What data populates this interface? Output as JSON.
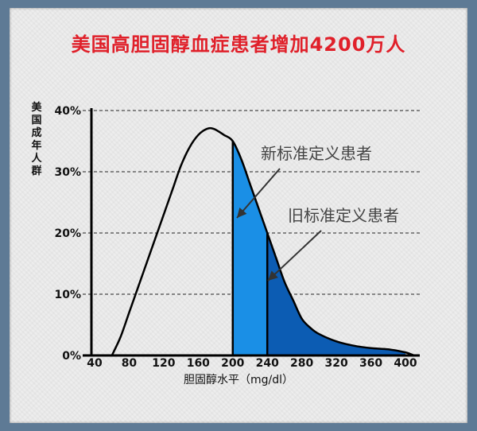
{
  "chart_data": {
    "type": "area",
    "title": "美国高胆固醇血症患者增加4200万人",
    "ylabel": "美国成年人群",
    "xlabel": "胆固醇水平（mg/dl）",
    "x_ticks": [
      40,
      80,
      120,
      160,
      200,
      240,
      280,
      320,
      360,
      400
    ],
    "y_ticks": [
      "0%",
      "10%",
      "20%",
      "30%",
      "40%"
    ],
    "xlim": [
      40,
      420
    ],
    "ylim": [
      0,
      40
    ],
    "grid": "horizontal dashed",
    "series": [
      {
        "x": [
          60,
          70,
          80,
          90,
          100,
          110,
          120,
          130,
          140,
          150,
          160,
          170,
          178,
          190,
          200,
          210,
          220,
          230,
          240,
          250,
          260,
          270,
          280,
          290,
          300,
          320,
          340,
          360,
          380,
          400,
          410
        ],
        "y": [
          0,
          3,
          7,
          11,
          15,
          19,
          23,
          27,
          31,
          34,
          36,
          37,
          37,
          36,
          35,
          32,
          28,
          24,
          20,
          16,
          12,
          9,
          6,
          4.5,
          3.5,
          2.3,
          1.6,
          1.2,
          1.0,
          0.5,
          0
        ]
      }
    ],
    "annotations": [
      {
        "text": "新标准定义患者",
        "range": [
          200,
          400
        ],
        "color": "#1a8fe6"
      },
      {
        "text": "旧标准定义患者",
        "range": [
          240,
          400
        ],
        "color": "#0c5cb3"
      }
    ],
    "colors": {
      "new_standard": "#1a8fe6",
      "old_standard": "#0c5cb3",
      "title": "#e0202a"
    }
  }
}
